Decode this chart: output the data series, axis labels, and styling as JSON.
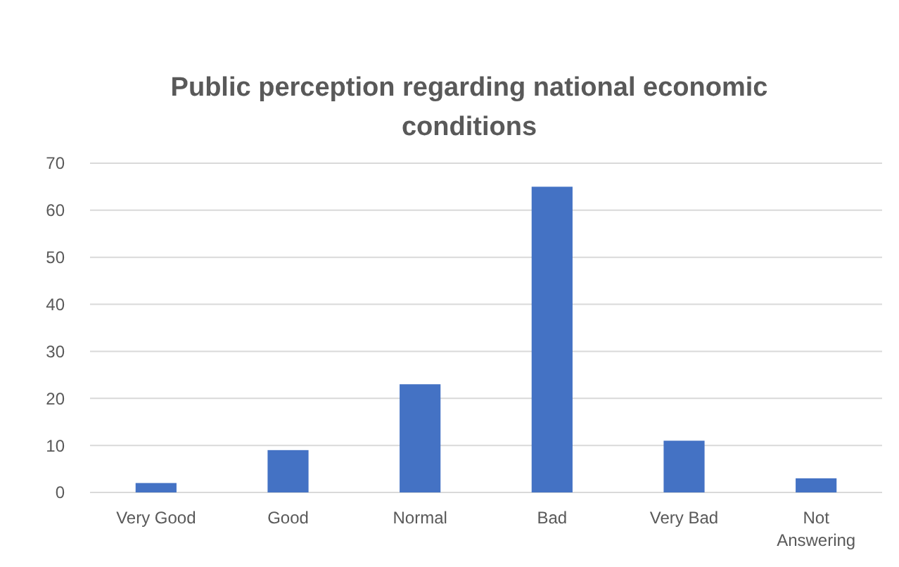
{
  "chart_data": {
    "type": "bar",
    "title": "Public perception regarding national economic conditions",
    "categories": [
      "Very Good",
      "Good",
      "Normal",
      "Bad",
      "Very Bad",
      "Not Answering"
    ],
    "values": [
      2,
      9,
      23,
      65,
      11,
      3
    ],
    "color": "#4472c4",
    "ylim": [
      0,
      70
    ],
    "yticks": [
      0,
      10,
      20,
      30,
      40,
      50,
      60,
      70
    ],
    "grid": "y"
  }
}
